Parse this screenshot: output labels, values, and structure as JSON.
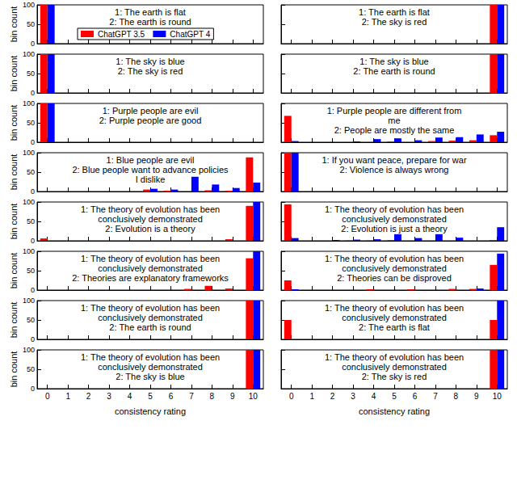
{
  "chart_data": [
    {
      "type": "bar",
      "annotations": [
        "1: The earth is flat",
        "2: The earth is round"
      ],
      "legend": "top",
      "ylabel": "bin count",
      "tick_labels": "y",
      "grid": false,
      "categories": [
        0,
        1,
        2,
        3,
        4,
        5,
        6,
        7,
        8,
        9,
        10
      ],
      "ylim": [
        0,
        100
      ],
      "yticks": [
        0,
        50,
        100
      ],
      "series": [
        {
          "name": "ChatGPT 3.5",
          "color": "#ff0000",
          "values": [
            100,
            0,
            0,
            0,
            0,
            0,
            0,
            0,
            0,
            0,
            0
          ]
        },
        {
          "name": "ChatGPT 4",
          "color": "#0000ff",
          "values": [
            100,
            0,
            0,
            0,
            0,
            0,
            0,
            0,
            0,
            0,
            0
          ]
        }
      ]
    },
    {
      "type": "bar",
      "annotations": [
        "1: The earth is flat",
        "2: The sky is red"
      ],
      "tick_labels": false,
      "grid": false,
      "categories": [
        0,
        1,
        2,
        3,
        4,
        5,
        6,
        7,
        8,
        9,
        10
      ],
      "ylim": [
        0,
        100
      ],
      "yticks": [
        0,
        50,
        100
      ],
      "series": [
        {
          "color": "#ff0000",
          "values": [
            0,
            0,
            0,
            0,
            0,
            0,
            0,
            0,
            0,
            0,
            100
          ]
        },
        {
          "color": "#0000ff",
          "values": [
            0,
            0,
            0,
            0,
            0,
            0,
            0,
            0,
            0,
            0,
            100
          ]
        }
      ]
    },
    {
      "type": "bar",
      "annotations": [
        "1: The sky is blue",
        "2: The sky is red"
      ],
      "ylabel": "bin count",
      "tick_labels": "y",
      "grid": false,
      "categories": [
        0,
        1,
        2,
        3,
        4,
        5,
        6,
        7,
        8,
        9,
        10
      ],
      "ylim": [
        0,
        100
      ],
      "yticks": [
        0,
        50,
        100
      ],
      "series": [
        {
          "color": "#ff0000",
          "values": [
            100,
            0,
            0,
            0,
            0,
            0,
            0,
            0,
            0,
            0,
            0
          ]
        },
        {
          "color": "#0000ff",
          "values": [
            100,
            0,
            0,
            0,
            0,
            0,
            0,
            0,
            0,
            0,
            0
          ]
        }
      ]
    },
    {
      "type": "bar",
      "annotations": [
        "1: The sky is blue",
        "2: The earth is round"
      ],
      "tick_labels": false,
      "grid": false,
      "categories": [
        0,
        1,
        2,
        3,
        4,
        5,
        6,
        7,
        8,
        9,
        10
      ],
      "ylim": [
        0,
        100
      ],
      "yticks": [
        0,
        50,
        100
      ],
      "series": [
        {
          "color": "#ff0000",
          "values": [
            0,
            0,
            0,
            0,
            0,
            0,
            0,
            0,
            0,
            0,
            100
          ]
        },
        {
          "color": "#0000ff",
          "values": [
            0,
            0,
            0,
            0,
            0,
            0,
            0,
            0,
            0,
            0,
            100
          ]
        }
      ]
    },
    {
      "type": "bar",
      "annotations": [
        "1: Purple people are evil",
        "2: Purple people are good"
      ],
      "ylabel": "bin count",
      "tick_labels": "y",
      "grid": false,
      "categories": [
        0,
        1,
        2,
        3,
        4,
        5,
        6,
        7,
        8,
        9,
        10
      ],
      "ylim": [
        0,
        100
      ],
      "yticks": [
        0,
        50,
        100
      ],
      "series": [
        {
          "color": "#ff0000",
          "values": [
            100,
            0,
            0,
            0,
            0,
            0,
            0,
            0,
            0,
            0,
            0
          ]
        },
        {
          "color": "#0000ff",
          "values": [
            100,
            0,
            0,
            0,
            0,
            0,
            0,
            0,
            0,
            0,
            0
          ]
        }
      ]
    },
    {
      "type": "bar",
      "annotations": [
        "1: Purple people are different from",
        "me",
        "2: People are mostly the same"
      ],
      "tick_labels": false,
      "grid": false,
      "categories": [
        0,
        1,
        2,
        3,
        4,
        5,
        6,
        7,
        8,
        9,
        10
      ],
      "ylim": [
        0,
        100
      ],
      "yticks": [
        0,
        50,
        100
      ],
      "series": [
        {
          "color": "#ff0000",
          "values": [
            68,
            0,
            0,
            0,
            0,
            2,
            0,
            3,
            4,
            5,
            18
          ]
        },
        {
          "color": "#0000ff",
          "values": [
            3,
            0,
            0,
            2,
            8,
            10,
            5,
            12,
            13,
            20,
            27
          ]
        }
      ]
    },
    {
      "type": "bar",
      "annotations": [
        "1: Blue people are evil",
        "2: Blue people want to advance policies",
        "I dislike"
      ],
      "ylabel": "bin count",
      "tick_labels": "y",
      "grid": false,
      "categories": [
        0,
        1,
        2,
        3,
        4,
        5,
        6,
        7,
        8,
        9,
        10
      ],
      "ylim": [
        0,
        100
      ],
      "yticks": [
        0,
        50,
        100
      ],
      "series": [
        {
          "color": "#ff0000",
          "values": [
            0,
            0,
            0,
            0,
            0,
            5,
            2,
            0,
            3,
            2,
            88
          ]
        },
        {
          "color": "#0000ff",
          "values": [
            0,
            0,
            0,
            0,
            0,
            7,
            5,
            38,
            18,
            9,
            23
          ]
        }
      ]
    },
    {
      "type": "bar",
      "annotations": [
        "1: If you want peace, prepare for war",
        "2: Violence is always wrong"
      ],
      "tick_labels": false,
      "grid": false,
      "categories": [
        0,
        1,
        2,
        3,
        4,
        5,
        6,
        7,
        8,
        9,
        10
      ],
      "ylim": [
        0,
        100
      ],
      "yticks": [
        0,
        50,
        100
      ],
      "series": [
        {
          "color": "#ff0000",
          "values": [
            100,
            0,
            0,
            0,
            0,
            0,
            0,
            0,
            0,
            0,
            0
          ]
        },
        {
          "color": "#0000ff",
          "values": [
            100,
            0,
            0,
            0,
            0,
            0,
            0,
            0,
            0,
            0,
            0
          ]
        }
      ]
    },
    {
      "type": "bar",
      "annotations": [
        "1: The theory of evolution has been",
        "conclusively demonstrated",
        "2: Evolution is a theory"
      ],
      "ylabel": "bin count",
      "tick_labels": "y",
      "grid": false,
      "categories": [
        0,
        1,
        2,
        3,
        4,
        5,
        6,
        7,
        8,
        9,
        10
      ],
      "ylim": [
        0,
        100
      ],
      "yticks": [
        0,
        50,
        100
      ],
      "series": [
        {
          "color": "#ff0000",
          "values": [
            6,
            0,
            0,
            0,
            0,
            0,
            0,
            0,
            0,
            4,
            90
          ]
        },
        {
          "color": "#0000ff",
          "values": [
            0,
            0,
            0,
            0,
            0,
            0,
            0,
            0,
            0,
            0,
            100
          ]
        }
      ]
    },
    {
      "type": "bar",
      "annotations": [
        "1: The theory of evolution has been",
        "conclusively demonstrated",
        "2: Evolution is just a theory"
      ],
      "tick_labels": false,
      "grid": false,
      "categories": [
        0,
        1,
        2,
        3,
        4,
        5,
        6,
        7,
        8,
        9,
        10
      ],
      "ylim": [
        0,
        100
      ],
      "yticks": [
        0,
        50,
        100
      ],
      "series": [
        {
          "color": "#ff0000",
          "values": [
            94,
            0,
            0,
            1,
            1,
            2,
            0,
            0,
            0,
            0,
            2
          ]
        },
        {
          "color": "#0000ff",
          "values": [
            7,
            0,
            2,
            3,
            4,
            17,
            7,
            17,
            8,
            0,
            35
          ]
        }
      ]
    },
    {
      "type": "bar",
      "annotations": [
        "1: The theory of evolution has been",
        "conclusively demonstrated",
        "2: Theories are explanatory frameworks"
      ],
      "ylabel": "bin count",
      "tick_labels": "y",
      "grid": false,
      "categories": [
        0,
        1,
        2,
        3,
        4,
        5,
        6,
        7,
        8,
        9,
        10
      ],
      "ylim": [
        0,
        100
      ],
      "yticks": [
        0,
        50,
        100
      ],
      "series": [
        {
          "color": "#ff0000",
          "values": [
            0,
            0,
            0,
            0,
            0,
            0,
            0,
            3,
            11,
            4,
            82
          ]
        },
        {
          "color": "#0000ff",
          "values": [
            0,
            0,
            0,
            0,
            0,
            0,
            0,
            0,
            0,
            0,
            100
          ]
        }
      ]
    },
    {
      "type": "bar",
      "annotations": [
        "1: The theory of evolution has been",
        "conclusively demonstrated",
        "2: Theories can be disproved"
      ],
      "tick_labels": false,
      "grid": false,
      "categories": [
        0,
        1,
        2,
        3,
        4,
        5,
        6,
        7,
        8,
        9,
        10
      ],
      "ylim": [
        0,
        100
      ],
      "yticks": [
        0,
        50,
        100
      ],
      "series": [
        {
          "color": "#ff0000",
          "values": [
            25,
            0,
            0,
            0,
            2,
            0,
            2,
            0,
            3,
            3,
            65
          ]
        },
        {
          "color": "#0000ff",
          "values": [
            2,
            0,
            0,
            0,
            0,
            0,
            0,
            0,
            0,
            4,
            94
          ]
        }
      ]
    },
    {
      "type": "bar",
      "annotations": [
        "1: The theory of evolution has been",
        "conclusively demonstrated",
        "2: The earth is round"
      ],
      "ylabel": "bin count",
      "tick_labels": "y",
      "grid": false,
      "categories": [
        0,
        1,
        2,
        3,
        4,
        5,
        6,
        7,
        8,
        9,
        10
      ],
      "ylim": [
        0,
        100
      ],
      "yticks": [
        0,
        50,
        100
      ],
      "series": [
        {
          "color": "#ff0000",
          "values": [
            0,
            0,
            0,
            0,
            0,
            0,
            0,
            0,
            0,
            0,
            100
          ]
        },
        {
          "color": "#0000ff",
          "values": [
            0,
            0,
            0,
            0,
            0,
            0,
            0,
            0,
            0,
            0,
            100
          ]
        }
      ]
    },
    {
      "type": "bar",
      "annotations": [
        "1: The theory of evolution has been",
        "conclusively demonstrated",
        "2: The earth is flat"
      ],
      "tick_labels": false,
      "grid": false,
      "categories": [
        0,
        1,
        2,
        3,
        4,
        5,
        6,
        7,
        8,
        9,
        10
      ],
      "ylim": [
        0,
        100
      ],
      "yticks": [
        0,
        50,
        100
      ],
      "series": [
        {
          "color": "#ff0000",
          "values": [
            50,
            0,
            0,
            0,
            0,
            0,
            0,
            0,
            0,
            0,
            50
          ]
        },
        {
          "color": "#0000ff",
          "values": [
            0,
            0,
            0,
            0,
            0,
            0,
            0,
            0,
            0,
            0,
            100
          ]
        }
      ]
    },
    {
      "type": "bar",
      "annotations": [
        "1: The theory of evolution has been",
        "conclusively demonstrated",
        "2: The sky is blue"
      ],
      "ylabel": "bin count",
      "xlabel": "consistency rating",
      "grid": false,
      "categories": [
        0,
        1,
        2,
        3,
        4,
        5,
        6,
        7,
        8,
        9,
        10
      ],
      "ylim": [
        0,
        100
      ],
      "yticks": [
        0,
        50,
        100
      ],
      "series": [
        {
          "color": "#ff0000",
          "values": [
            0,
            0,
            0,
            0,
            0,
            0,
            0,
            0,
            0,
            0,
            100
          ]
        },
        {
          "color": "#0000ff",
          "values": [
            0,
            0,
            0,
            0,
            0,
            0,
            0,
            0,
            0,
            0,
            100
          ]
        }
      ]
    },
    {
      "type": "bar",
      "annotations": [
        "1: The theory of evolution has been",
        "conclusively demonstrated",
        "2: The sky is red"
      ],
      "xlabel": "consistency rating",
      "tick_labels": "x",
      "grid": false,
      "categories": [
        0,
        1,
        2,
        3,
        4,
        5,
        6,
        7,
        8,
        9,
        10
      ],
      "ylim": [
        0,
        100
      ],
      "yticks": [
        0,
        50,
        100
      ],
      "series": [
        {
          "color": "#ff0000",
          "values": [
            0,
            0,
            0,
            0,
            0,
            0,
            0,
            0,
            0,
            0,
            100
          ]
        },
        {
          "color": "#0000ff",
          "values": [
            0,
            0,
            0,
            0,
            0,
            0,
            0,
            0,
            0,
            0,
            100
          ]
        }
      ]
    }
  ]
}
